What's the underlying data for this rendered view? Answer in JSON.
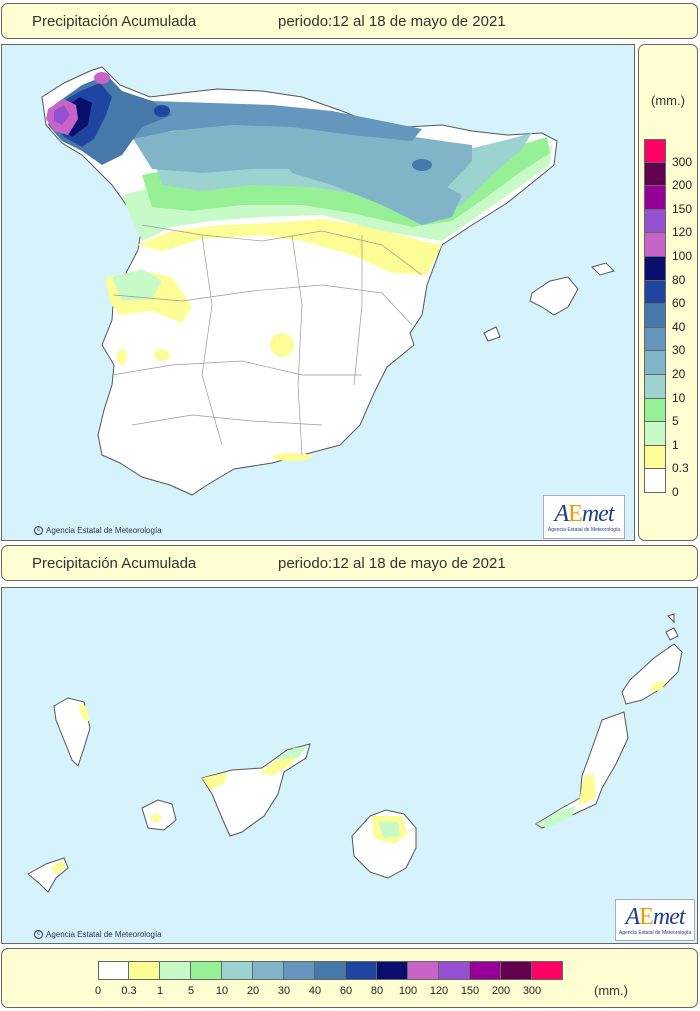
{
  "map_top": {
    "title": "Precipitación Acumulada",
    "period": "periodo:12 al 18 de mayo de 2021",
    "copyright": "Agencia Estatal de Meteorología",
    "logo_brand_a": "A",
    "logo_brand_e": "E",
    "logo_brand_rest": "met",
    "logo_sub": "Agencia Estatal de Meteorología"
  },
  "map_bottom": {
    "title": "Precipitación Acumulada",
    "period": "periodo:12 al 18 de mayo de 2021",
    "copyright": "Agencia Estatal de Meteorología",
    "logo_brand_a": "A",
    "logo_brand_e": "E",
    "logo_brand_rest": "met",
    "logo_sub": "Agencia Estatal de Meteorología"
  },
  "legend": {
    "unit": "(mm.)",
    "classes": [
      {
        "label": "0",
        "color": "#ffffff"
      },
      {
        "label": "0.3",
        "color": "#fdfd96"
      },
      {
        "label": "1",
        "color": "#c8fac8"
      },
      {
        "label": "5",
        "color": "#96f096"
      },
      {
        "label": "10",
        "color": "#9cd2d0"
      },
      {
        "label": "20",
        "color": "#82b4c8"
      },
      {
        "label": "30",
        "color": "#6496be"
      },
      {
        "label": "40",
        "color": "#4678aa"
      },
      {
        "label": "60",
        "color": "#1e46a0"
      },
      {
        "label": "80",
        "color": "#0a0f6e"
      },
      {
        "label": "100",
        "color": "#c864c8"
      },
      {
        "label": "120",
        "color": "#9650d2"
      },
      {
        "label": "150",
        "color": "#960096"
      },
      {
        "label": "200",
        "color": "#640050"
      },
      {
        "label": "300",
        "color": "#ff0064"
      }
    ]
  }
}
